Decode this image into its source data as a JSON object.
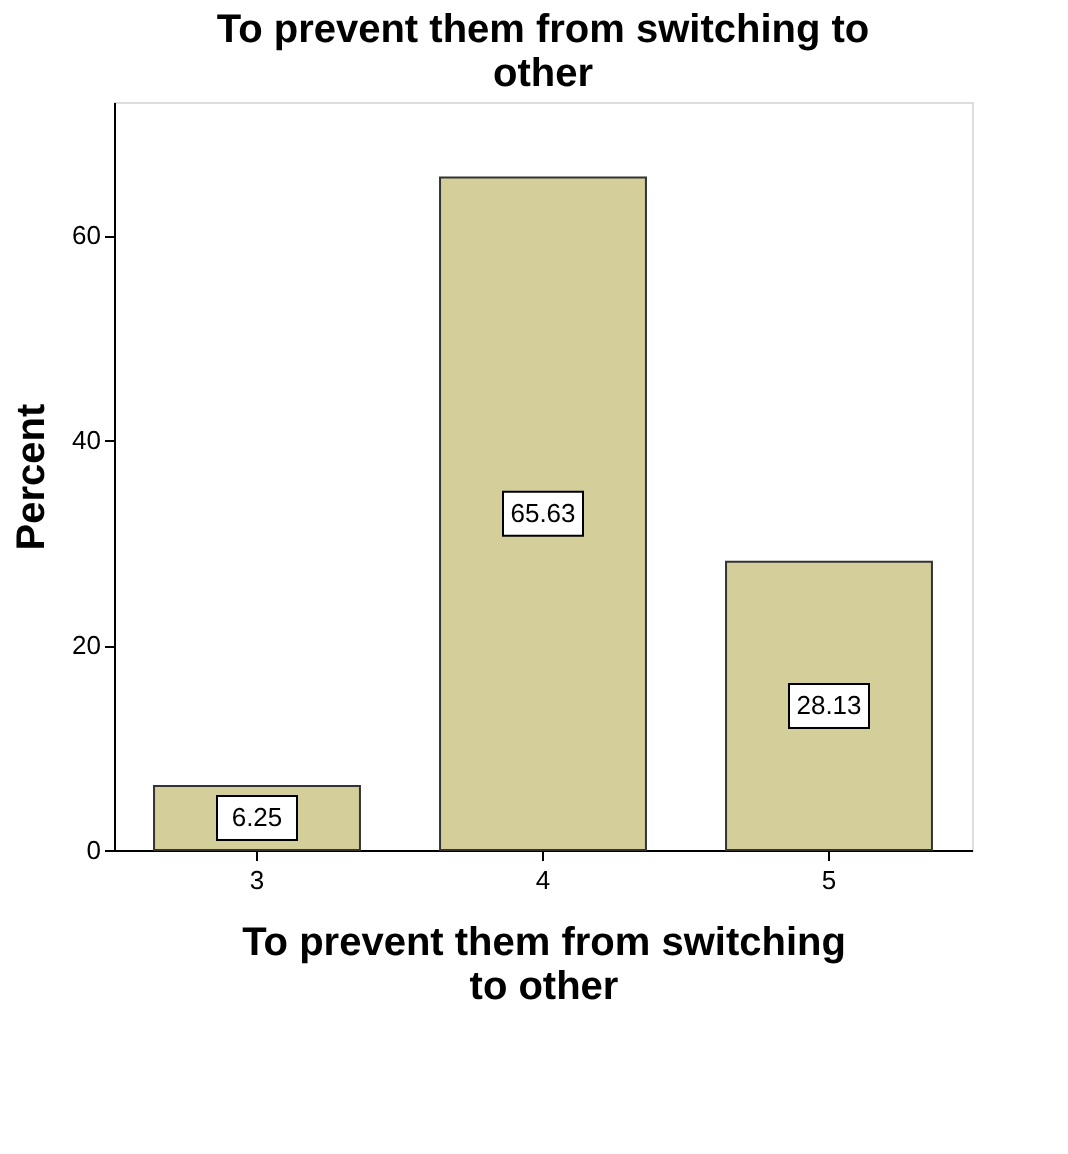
{
  "chart_data": {
    "type": "bar",
    "title": "To prevent them from switching to other",
    "xlabel": "To prevent them from switching to other",
    "ylabel": "Percent",
    "categories": [
      "3",
      "4",
      "5"
    ],
    "values": [
      6.25,
      65.63,
      28.13
    ],
    "color": "#d3ce9a",
    "ylim": [
      0,
      73
    ],
    "yticks": [
      0,
      20,
      40,
      60
    ],
    "grid": false,
    "data_labels": true
  }
}
